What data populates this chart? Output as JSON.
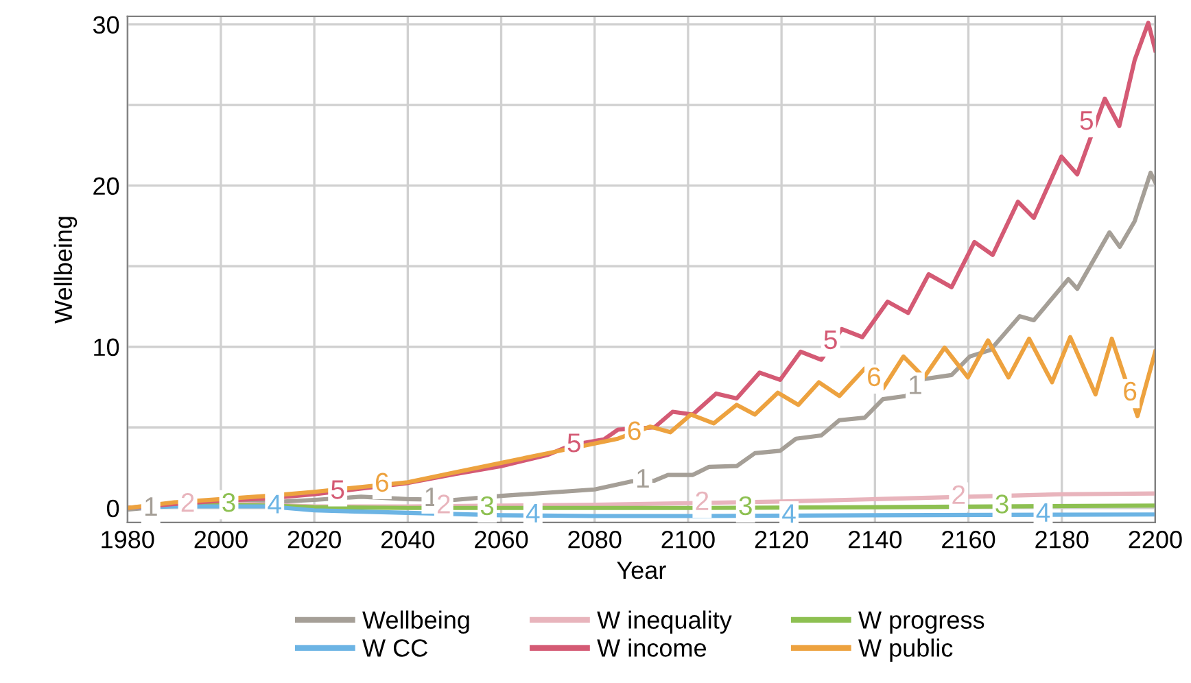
{
  "chart_data": {
    "type": "line",
    "xlabel": "Year",
    "ylabel": "Wellbeing",
    "xlim": [
      1980,
      2200
    ],
    "ylim": [
      -0.9,
      30.5
    ],
    "xticks": [
      1980,
      2000,
      2020,
      2040,
      2060,
      2080,
      2100,
      2120,
      2140,
      2160,
      2180,
      2200
    ],
    "yticks": [
      0,
      {
        "value": 5,
        "label": null
      },
      10,
      {
        "value": 15,
        "label": null
      },
      20,
      {
        "value": 25,
        "label": null
      },
      30
    ],
    "grid": true,
    "legend": "bottom",
    "marker": "none",
    "line_style": "solid",
    "series": [
      {
        "name": "Wellbeing",
        "color": "#a59f97",
        "x": [
          1980,
          1990,
          2000,
          2010,
          2020,
          2030,
          2040,
          2050,
          2060,
          2070,
          2080,
          2087.9,
          2092.8,
          2095.7,
          2101,
          2104.5,
          2110.4,
          2114.3,
          2119.7,
          2123.1,
          2128.5,
          2132.4,
          2137.8,
          2141.7,
          2146.6,
          2150.5,
          2156.4,
          2160.3,
          2164.7,
          2171,
          2174,
          2181.4,
          2183.3,
          2190.2,
          2192.4,
          2195.6,
          2199,
          2200
        ],
        "values": [
          -0.1,
          0.15,
          0.3,
          0.35,
          0.5,
          0.7,
          0.55,
          0.5,
          0.75,
          0.95,
          1.15,
          1.65,
          1.7,
          2.05,
          2.05,
          2.55,
          2.6,
          3.4,
          3.55,
          4.3,
          4.5,
          5.45,
          5.6,
          6.75,
          6.95,
          8.0,
          8.25,
          9.4,
          9.8,
          11.9,
          11.65,
          14.2,
          13.6,
          17.1,
          16.2,
          17.8,
          20.8,
          20.2
        ]
      },
      {
        "name": "W inequality",
        "color": "#e8b4bc",
        "x": [
          1980,
          1990,
          2000,
          2010,
          2020,
          2040,
          2060,
          2080,
          2100,
          2120,
          2140,
          2160,
          2180,
          2200
        ],
        "values": [
          0,
          0.2,
          0.3,
          0.2,
          0.1,
          0.1,
          0.15,
          0.2,
          0.3,
          0.4,
          0.55,
          0.7,
          0.85,
          0.9
        ]
      },
      {
        "name": "W progress",
        "color": "#8dc051",
        "x": [
          1980,
          1990,
          2000,
          2010,
          2020,
          2040,
          2060,
          2080,
          2100,
          2140,
          2200
        ],
        "values": [
          0,
          0.15,
          0.2,
          0.15,
          0.05,
          0.0,
          0.0,
          0.0,
          0.0,
          0.05,
          0.15
        ]
      },
      {
        "name": "W CC",
        "color": "#6cb4e4",
        "x": [
          1980,
          1990,
          2000,
          2010,
          2020,
          2040,
          2060,
          2080,
          2100,
          2140,
          2200
        ],
        "values": [
          0,
          0.1,
          0.1,
          0.1,
          -0.15,
          -0.3,
          -0.45,
          -0.5,
          -0.5,
          -0.45,
          -0.4
        ]
      },
      {
        "name": "W income",
        "color": "#d45a74",
        "x": [
          1980,
          1990,
          2000,
          2010,
          2020,
          2030,
          2040,
          2050,
          2060,
          2070,
          2075,
          2082,
          2085,
          2092.8,
          2096.7,
          2101,
          2106,
          2110.4,
          2115.3,
          2119.7,
          2124.1,
          2128.5,
          2132.9,
          2137.3,
          2142.7,
          2147.1,
          2151.5,
          2156.4,
          2161.3,
          2165.2,
          2170.6,
          2174,
          2179.9,
          2183.3,
          2189.2,
          2192.3,
          2195.6,
          2198.5,
          2200
        ],
        "values": [
          0,
          0.25,
          0.45,
          0.6,
          0.85,
          1.2,
          1.55,
          2.1,
          2.6,
          3.3,
          3.9,
          4.26,
          4.86,
          5.0,
          5.97,
          5.8,
          7.1,
          6.8,
          8.4,
          7.95,
          9.7,
          9.2,
          11.1,
          10.6,
          12.8,
          12.1,
          14.5,
          13.7,
          16.5,
          15.7,
          19.0,
          18.0,
          21.8,
          20.7,
          25.4,
          23.7,
          27.8,
          30.1,
          28.4
        ]
      },
      {
        "name": "W public",
        "color": "#eda23f",
        "x": [
          1980,
          1990,
          2000,
          2010,
          2020,
          2030,
          2040,
          2050,
          2060,
          2070,
          2080,
          2085,
          2091.9,
          2096.2,
          2100.6,
          2105.5,
          2110.4,
          2114.3,
          2119.2,
          2123.6,
          2128,
          2132.4,
          2137.8,
          2141.7,
          2146.1,
          2150.5,
          2154.9,
          2159.9,
          2164.2,
          2168.6,
          2173,
          2177.9,
          2181.8,
          2187.2,
          2190.7,
          2194.6,
          2196.2,
          2200
        ],
        "values": [
          0,
          0.35,
          0.55,
          0.75,
          1.0,
          1.3,
          1.6,
          2.2,
          2.8,
          3.4,
          4.0,
          4.3,
          5.05,
          4.7,
          5.8,
          5.25,
          6.4,
          5.8,
          7.15,
          6.4,
          7.8,
          6.95,
          8.65,
          7.4,
          9.4,
          8.1,
          9.95,
          8.1,
          10.4,
          8.1,
          10.5,
          7.8,
          10.6,
          7.05,
          10.5,
          7.1,
          5.7,
          9.7
        ]
      }
    ],
    "annotations": [
      {
        "text": "1",
        "x": 1985,
        "y": -0.05
      },
      {
        "text": "1",
        "x": 2045,
        "y": 0.55
      },
      {
        "text": "1",
        "x": 2090.3,
        "y": 1.7
      },
      {
        "text": "1",
        "x": 2148.6,
        "y": 7.5
      },
      {
        "text": "2",
        "x": 1992.9,
        "y": 0.2
      },
      {
        "text": "2",
        "x": 2047.7,
        "y": 0.1
      },
      {
        "text": "2",
        "x": 2103,
        "y": 0.3
      },
      {
        "text": "2",
        "x": 2157.9,
        "y": 0.68
      },
      {
        "text": "3",
        "x": 2001.7,
        "y": 0.2
      },
      {
        "text": "3",
        "x": 2057,
        "y": 0.0
      },
      {
        "text": "3",
        "x": 2112.3,
        "y": 0.0
      },
      {
        "text": "3",
        "x": 2167.2,
        "y": 0.1
      },
      {
        "text": "4",
        "x": 2011.5,
        "y": 0.1
      },
      {
        "text": "4",
        "x": 2066.8,
        "y": -0.46
      },
      {
        "text": "4",
        "x": 2121.6,
        "y": -0.49
      },
      {
        "text": "4",
        "x": 2176,
        "y": -0.42
      },
      {
        "text": "5",
        "x": 2025,
        "y": 1.0
      },
      {
        "text": "5",
        "x": 2075.6,
        "y": 3.9
      },
      {
        "text": "5",
        "x": 2130.5,
        "y": 10.3
      },
      {
        "text": "5",
        "x": 2185.3,
        "y": 23.9
      },
      {
        "text": "6",
        "x": 2034.5,
        "y": 1.45
      },
      {
        "text": "6",
        "x": 2088.5,
        "y": 4.65
      },
      {
        "text": "6",
        "x": 2139.8,
        "y": 8.0
      },
      {
        "text": "6",
        "x": 2194.6,
        "y": 7.1
      }
    ]
  }
}
